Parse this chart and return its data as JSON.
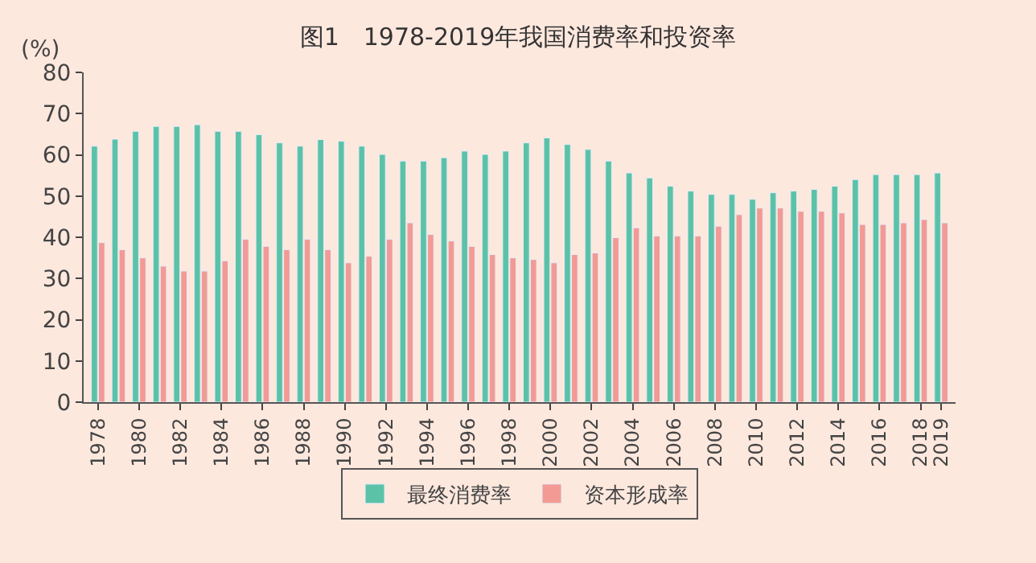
{
  "chart_data": {
    "type": "bar",
    "title": "图1　1978-2019年我国消费率和投资率",
    "ylabel": "(%)",
    "categories": [
      "1978",
      null,
      "1980",
      null,
      "1982",
      null,
      "1984",
      null,
      "1986",
      null,
      "1988",
      null,
      "1990",
      null,
      "1992",
      null,
      "1994",
      null,
      "1996",
      null,
      "1998",
      null,
      "2000",
      null,
      "2002",
      null,
      "2004",
      null,
      "2006",
      null,
      "2008",
      null,
      "2010",
      null,
      "2012",
      null,
      "2014",
      null,
      "2016",
      null,
      "2018",
      "2019"
    ],
    "series": [
      {
        "name": "最终消费率",
        "color": "#5bc2a8",
        "values": [
          62.1,
          63.8,
          65.7,
          66.9,
          66.9,
          67.3,
          65.7,
          65.7,
          64.9,
          62.9,
          62.1,
          63.7,
          63.3,
          62.1,
          60.1,
          58.5,
          58.5,
          59.3,
          60.9,
          60.1,
          60.9,
          62.9,
          64.1,
          62.5,
          61.3,
          58.5,
          55.6,
          54.4,
          52.4,
          51.2,
          50.4,
          50.4,
          49.2,
          50.8,
          51.2,
          51.6,
          52.4,
          54.0,
          55.2,
          55.2,
          55.2,
          55.6
        ]
      },
      {
        "name": "资本形成率",
        "color": "#f39a94",
        "values": [
          38.7,
          37.0,
          35.0,
          33.0,
          31.8,
          31.8,
          34.3,
          39.5,
          37.8,
          37.0,
          39.5,
          37.0,
          33.8,
          35.4,
          39.5,
          43.5,
          40.7,
          39.1,
          37.8,
          35.8,
          35.0,
          34.6,
          33.8,
          35.8,
          36.2,
          39.9,
          42.3,
          40.3,
          40.3,
          40.3,
          42.7,
          45.5,
          47.1,
          47.1,
          46.3,
          46.3,
          45.9,
          43.1,
          43.1,
          43.5,
          44.3,
          43.5
        ]
      }
    ],
    "ylim": [
      0,
      80
    ],
    "yticks": [
      0,
      10,
      20,
      30,
      40,
      50,
      60,
      70,
      80
    ],
    "grid": false,
    "legend": "bottom"
  }
}
